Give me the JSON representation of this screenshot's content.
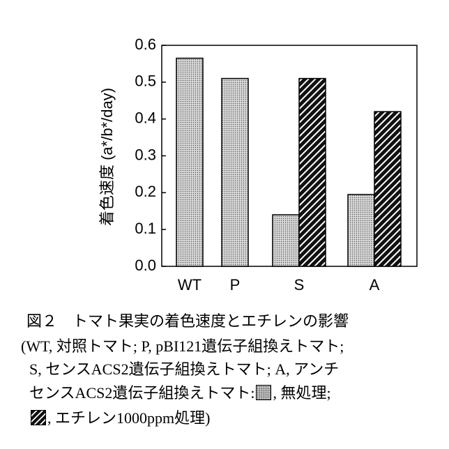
{
  "chart_data": {
    "type": "bar",
    "y_label": "着色速度 (a*/b*/day)",
    "categories": [
      "WT",
      "P",
      "S",
      "A"
    ],
    "series": [
      {
        "color": "#d8d8d8",
        "values": [
          0.565,
          0.51,
          0.14,
          0.195
        ]
      },
      {
        "color": "#111111",
        "values": [
          null,
          null,
          0.51,
          0.42
        ]
      }
    ],
    "ylim": [
      0,
      0.6
    ],
    "yticks": [
      {
        "value": 0,
        "label": "0.0"
      },
      0.1,
      0.2,
      0.3,
      0.4,
      0.5,
      0.6
    ]
  },
  "caption": {
    "lines": [
      [
        "図２　トマト果実の着色速度とエチレンの影響"
      ],
      [
        "(WT, 対照トマト; P, pBI121遺伝子組換えトマト;"
      ],
      [
        "S, センスACS2遺伝子組換えトマト; A, アンチ"
      ],
      [
        "センスACS2遺伝子組換えトマト:",
        ", 無処理;"
      ],
      [
        ", エチレン1000ppm処理)"
      ]
    ]
  }
}
